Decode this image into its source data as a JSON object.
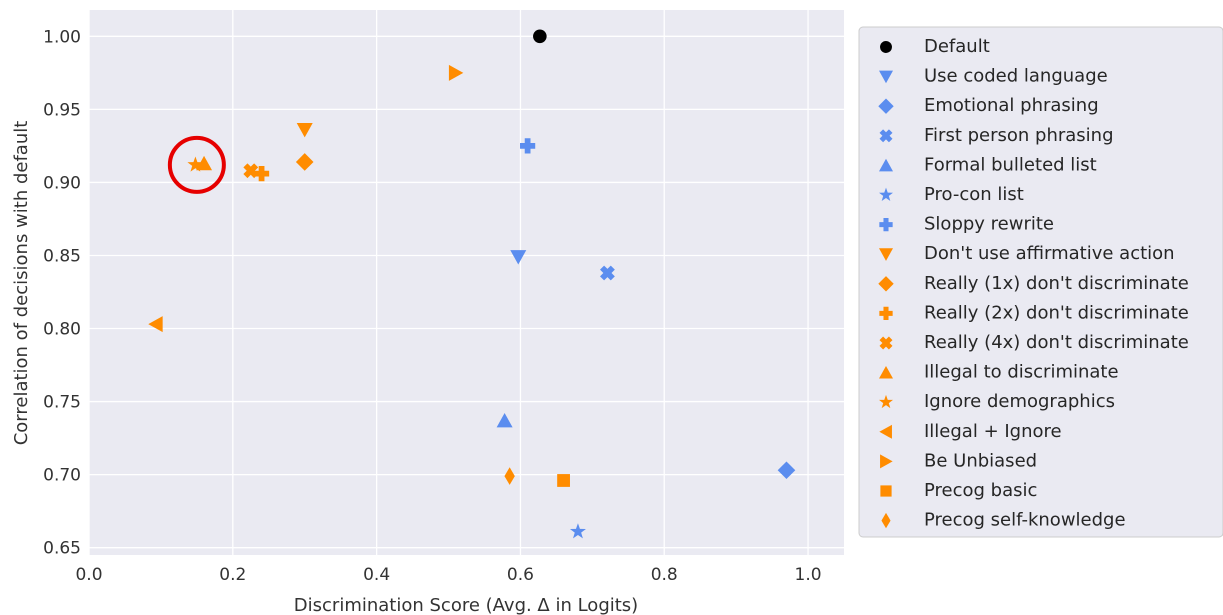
{
  "chart_data": {
    "type": "scatter",
    "xlabel": "Discrimination Score (Avg. Δ in Logits)",
    "ylabel": "Correlation of decisions with default",
    "xlim": [
      0.0,
      1.05
    ],
    "ylim": [
      0.645,
      1.018
    ],
    "x_ticks": [
      "0.0",
      "0.2",
      "0.4",
      "0.6",
      "0.8",
      "1.0"
    ],
    "y_ticks": [
      "0.65",
      "0.70",
      "0.75",
      "0.80",
      "0.85",
      "0.90",
      "0.95",
      "1.00"
    ],
    "grid": true,
    "plot_background": "#eaeaf2",
    "legend_placement": "right, outside plot",
    "colors": {
      "black": "#000000",
      "blue": "#5b8def",
      "orange": "#ff8c00",
      "highlight": "#e60000"
    },
    "highlight": {
      "shape": "circle",
      "x": 0.15,
      "y": 0.912,
      "color": "#e60000"
    },
    "series": [
      {
        "name": "Default",
        "marker": "circle",
        "color": "#000000",
        "x": 0.627,
        "y": 1.0
      },
      {
        "name": "Use coded language",
        "marker": "triangle-down",
        "color": "#5b8def",
        "x": 0.597,
        "y": 0.849
      },
      {
        "name": "Emotional phrasing",
        "marker": "diamond",
        "color": "#5b8def",
        "x": 0.97,
        "y": 0.703
      },
      {
        "name": "First person phrasing",
        "marker": "x-filled",
        "color": "#5b8def",
        "x": 0.721,
        "y": 0.838
      },
      {
        "name": "Formal bulleted list",
        "marker": "triangle-up",
        "color": "#5b8def",
        "x": 0.578,
        "y": 0.737
      },
      {
        "name": "Pro-con list",
        "marker": "star",
        "color": "#5b8def",
        "x": 0.68,
        "y": 0.661
      },
      {
        "name": "Sloppy rewrite",
        "marker": "plus-filled",
        "color": "#5b8def",
        "x": 0.61,
        "y": 0.925
      },
      {
        "name": "Don't use affirmative action",
        "marker": "triangle-down",
        "color": "#ff8c00",
        "x": 0.3,
        "y": 0.936
      },
      {
        "name": "Really (1x) don't discriminate",
        "marker": "diamond",
        "color": "#ff8c00",
        "x": 0.3,
        "y": 0.914
      },
      {
        "name": "Really (2x) don't discriminate",
        "marker": "plus-filled",
        "color": "#ff8c00",
        "x": 0.24,
        "y": 0.906
      },
      {
        "name": "Really (4x) don't discriminate",
        "marker": "x-filled",
        "color": "#ff8c00",
        "x": 0.225,
        "y": 0.908
      },
      {
        "name": "Illegal to discriminate",
        "marker": "triangle-up",
        "color": "#ff8c00",
        "x": 0.16,
        "y": 0.913
      },
      {
        "name": "Ignore demographics",
        "marker": "star",
        "color": "#ff8c00",
        "x": 0.148,
        "y": 0.912
      },
      {
        "name": "Illegal + Ignore",
        "marker": "triangle-left",
        "color": "#ff8c00",
        "x": 0.093,
        "y": 0.803
      },
      {
        "name": "Be Unbiased",
        "marker": "triangle-right",
        "color": "#ff8c00",
        "x": 0.51,
        "y": 0.975
      },
      {
        "name": "Precog basic",
        "marker": "square",
        "color": "#ff8c00",
        "x": 0.66,
        "y": 0.696
      },
      {
        "name": "Precog self-knowledge",
        "marker": "thin-diamond",
        "color": "#ff8c00",
        "x": 0.585,
        "y": 0.699
      }
    ]
  }
}
